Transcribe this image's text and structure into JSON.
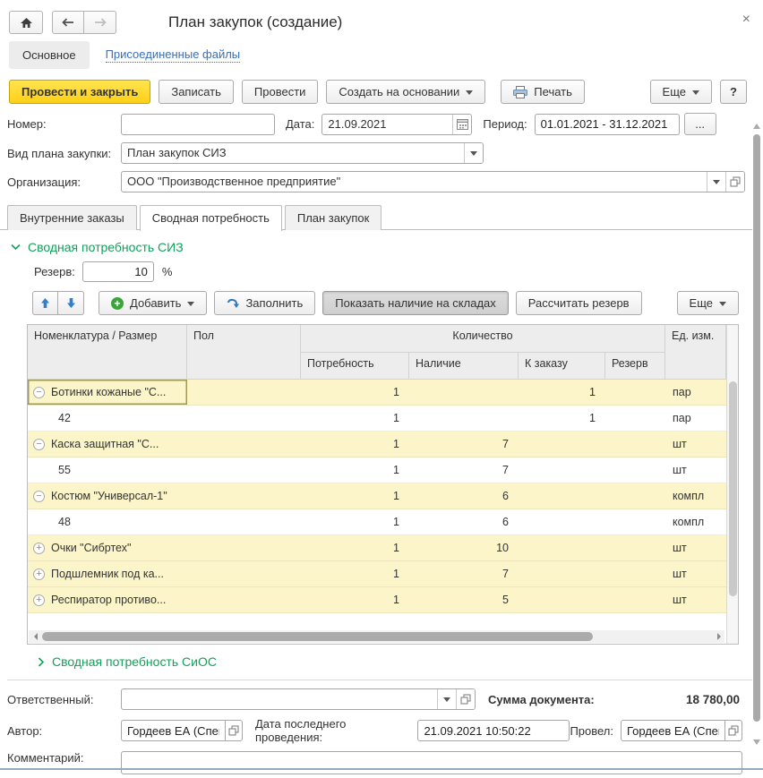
{
  "window": {
    "title": "План закупок (создание)",
    "close_glyph": "×",
    "help": "?"
  },
  "nav": {
    "main_tab": "Основное",
    "attached_files_link": "Присоединенные файлы"
  },
  "toolbar": {
    "post_and_close": "Провести и закрыть",
    "save": "Записать",
    "post": "Провести",
    "create_based_on": "Создать на основании",
    "print": "Печать",
    "more": "Еще"
  },
  "fields": {
    "number_label": "Номер:",
    "number_value": "",
    "date_label": "Дата:",
    "date_value": "21.09.2021",
    "period_label": "Период:",
    "period_value": "01.01.2021 - 31.12.2021",
    "period_more": "...",
    "plan_kind_label": "Вид плана закупки:",
    "plan_kind_value": "План закупок СИЗ",
    "org_label": "Организация:",
    "org_value": "ООО \"Производственное предприятие\""
  },
  "tabs": [
    {
      "label": "Внутренние заказы"
    },
    {
      "label": "Сводная потребность"
    },
    {
      "label": "План закупок"
    }
  ],
  "siz_section": {
    "title": "Сводная потребность СИЗ",
    "reserve_label": "Резерв:",
    "reserve_value": "10",
    "reserve_unit": "%",
    "add": "Добавить",
    "fill": "Заполнить",
    "show_stock": "Показать наличие на складах",
    "calc_reserve": "Рассчитать резерв",
    "more": "Еще"
  },
  "table": {
    "col_nomenclature": "Номенклатура / Размер",
    "col_gender": "Пол",
    "col_quantity": "Количество",
    "col_need": "Потребность",
    "col_stock": "Наличие",
    "col_order": "К заказу",
    "col_reserve": "Резерв",
    "col_unit": "Ед. изм.",
    "rows": [
      {
        "name": "Ботинки кожаные \"С...",
        "expand": "minus",
        "level": 0,
        "gender": "",
        "need": "1",
        "stock": "",
        "order": "1",
        "reserve": "",
        "unit": "пар",
        "yellow": true,
        "focused": true
      },
      {
        "name": "42",
        "expand": "",
        "level": 1,
        "gender": "",
        "need": "1",
        "stock": "",
        "order": "1",
        "reserve": "",
        "unit": "пар",
        "yellow": false
      },
      {
        "name": "Каска защитная \"С...",
        "expand": "minus",
        "level": 0,
        "gender": "",
        "need": "1",
        "stock": "7",
        "order": "",
        "reserve": "",
        "unit": "шт",
        "yellow": true
      },
      {
        "name": "55",
        "expand": "",
        "level": 1,
        "gender": "",
        "need": "1",
        "stock": "7",
        "order": "",
        "reserve": "",
        "unit": "шт",
        "yellow": false
      },
      {
        "name": "Костюм \"Универсал-1\"",
        "expand": "minus",
        "level": 0,
        "gender": "",
        "need": "1",
        "stock": "6",
        "order": "",
        "reserve": "",
        "unit": "компл",
        "yellow": true
      },
      {
        "name": "48",
        "expand": "",
        "level": 1,
        "gender": "",
        "need": "1",
        "stock": "6",
        "order": "",
        "reserve": "",
        "unit": "компл",
        "yellow": false
      },
      {
        "name": "Очки \"Сибртех\"",
        "expand": "plus",
        "level": 0,
        "gender": "",
        "need": "1",
        "stock": "10",
        "order": "",
        "reserve": "",
        "unit": "шт",
        "yellow": true
      },
      {
        "name": "Подшлемник под ка...",
        "expand": "plus",
        "level": 0,
        "gender": "",
        "need": "1",
        "stock": "7",
        "order": "",
        "reserve": "",
        "unit": "шт",
        "yellow": true
      },
      {
        "name": "Респиратор противо...",
        "expand": "plus",
        "level": 0,
        "gender": "",
        "need": "1",
        "stock": "5",
        "order": "",
        "reserve": "",
        "unit": "шт",
        "yellow": true
      }
    ]
  },
  "sios_section": {
    "title": "Сводная потребность СиОС"
  },
  "footer": {
    "responsible_label": "Ответственный:",
    "responsible_value": "",
    "total_label": "Сумма документа:",
    "total_value": "18 780,00",
    "author_label": "Автор:",
    "author_value": "Гордеев ЕА (Спец",
    "last_post_label": "Дата последнего проведения:",
    "last_post_value": "21.09.2021 10:50:22",
    "posted_by_label": "Провел:",
    "posted_by_value": "Гордеев ЕА (Спец",
    "comment_label": "Комментарий:"
  },
  "colors": {
    "accent_yellow": "#fed017",
    "section_green": "#12a05a",
    "link_blue": "#3a70b9",
    "row_yellow": "#fbf5c9"
  }
}
